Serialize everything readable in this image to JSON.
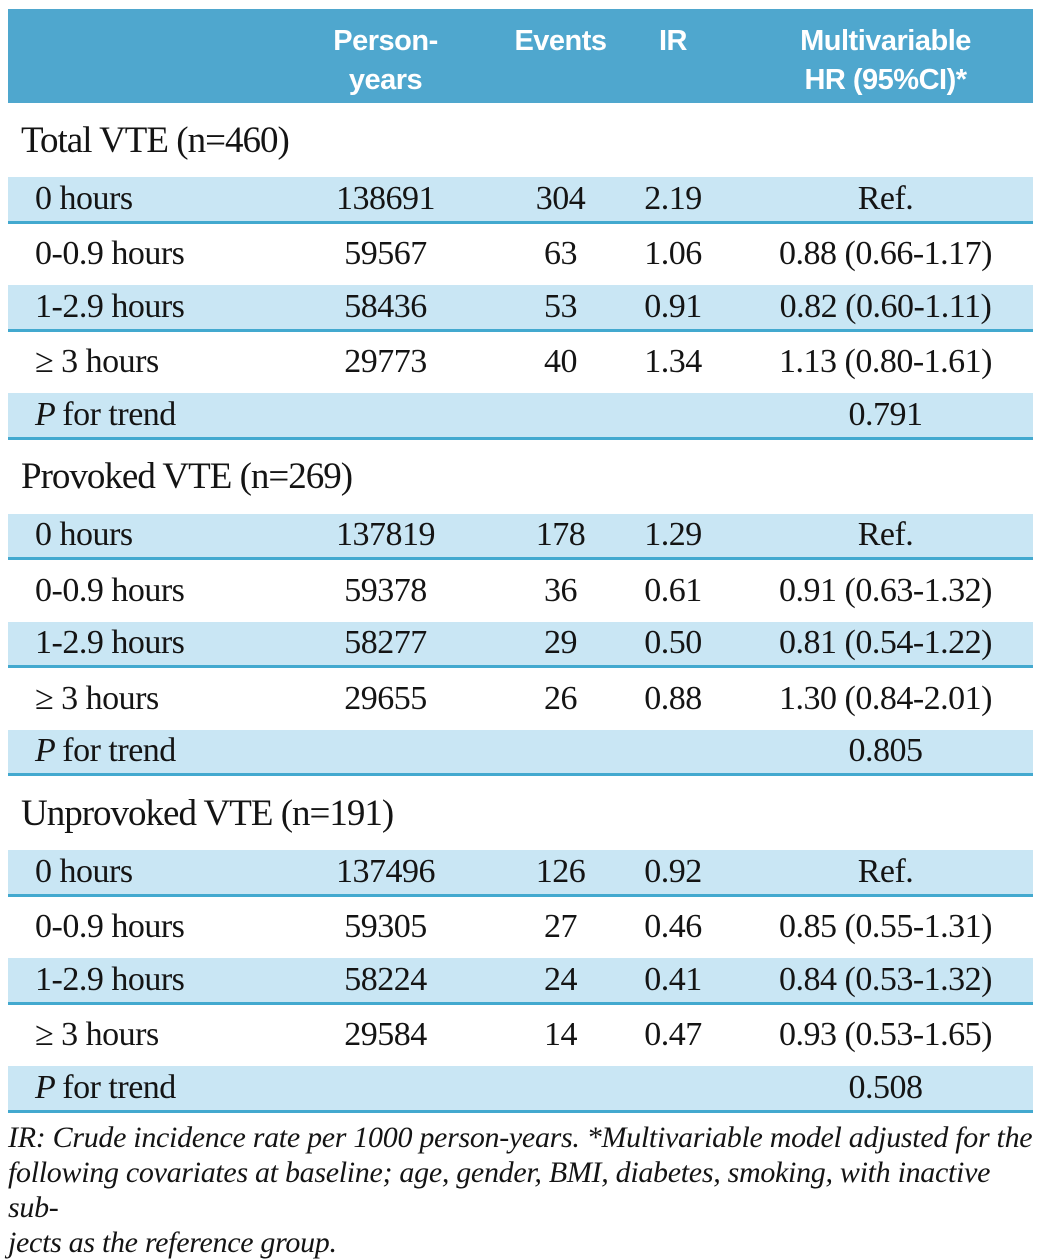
{
  "colors": {
    "header_bg": "#4FA7CE",
    "row_bg": "#C9E6F4",
    "separator": "#43A9CF",
    "header_text": "#FFFFFF",
    "text": "#141414"
  },
  "header": {
    "label": "",
    "person_years": "Person-\nyears",
    "events": "Events",
    "ir": "IR",
    "multivariable": "Multivariable\nHR (95%CI)*"
  },
  "p_row": {
    "p": "P",
    "rest": "for trend"
  },
  "sections": [
    {
      "title": "Total VTE (n=460)",
      "rows": [
        {
          "label": "0 hours",
          "person_years": "138691",
          "events": "304",
          "ir": "2.19",
          "hr": "Ref."
        },
        {
          "label": "0-0.9 hours",
          "person_years": "59567",
          "events": "63",
          "ir": "1.06",
          "hr": "0.88 (0.66-1.17)"
        },
        {
          "label": "1-2.9 hours",
          "person_years": "58436",
          "events": "53",
          "ir": "0.91",
          "hr": "0.82 (0.60-1.11)"
        },
        {
          "label": "≥ 3 hours",
          "person_years": "29773",
          "events": "40",
          "ir": "1.34",
          "hr": "1.13 (0.80-1.61)"
        }
      ],
      "p_for_trend": "0.791"
    },
    {
      "title": "Provoked VTE (n=269)",
      "rows": [
        {
          "label": "0 hours",
          "person_years": "137819",
          "events": "178",
          "ir": "1.29",
          "hr": "Ref."
        },
        {
          "label": "0-0.9 hours",
          "person_years": "59378",
          "events": "36",
          "ir": "0.61",
          "hr": "0.91 (0.63-1.32)"
        },
        {
          "label": "1-2.9 hours",
          "person_years": "58277",
          "events": "29",
          "ir": "0.50",
          "hr": "0.81 (0.54-1.22)"
        },
        {
          "label": "≥ 3 hours",
          "person_years": "29655",
          "events": "26",
          "ir": "0.88",
          "hr": "1.30 (0.84-2.01)"
        }
      ],
      "p_for_trend": "0.805"
    },
    {
      "title": "Unprovoked VTE (n=191)",
      "rows": [
        {
          "label": "0 hours",
          "person_years": "137496",
          "events": "126",
          "ir": "0.92",
          "hr": "Ref."
        },
        {
          "label": "0-0.9 hours",
          "person_years": "59305",
          "events": "27",
          "ir": "0.46",
          "hr": "0.85 (0.55-1.31)"
        },
        {
          "label": "1-2.9 hours",
          "person_years": "58224",
          "events": "24",
          "ir": "0.41",
          "hr": "0.84 (0.53-1.32)"
        },
        {
          "label": "≥ 3 hours",
          "person_years": "29584",
          "events": "14",
          "ir": "0.47",
          "hr": "0.93 (0.53-1.65)"
        }
      ],
      "p_for_trend": "0.508"
    }
  ],
  "footnote": {
    "line1": "IR: Crude incidence rate per 1000 person-years.  *Multivariable model adjusted for the",
    "line2": "following covariates at baseline; age, gender, BMI, diabetes, smoking, with inactive sub-",
    "line3": "jects as the reference group."
  }
}
